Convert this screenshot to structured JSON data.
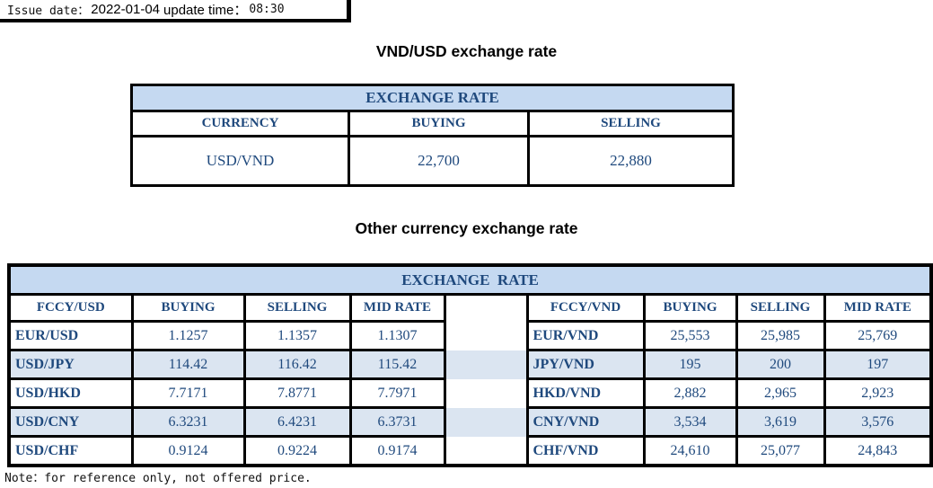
{
  "meta": {
    "issue_date_label": "Issue date：",
    "issue_date": "2022-01-04",
    "update_time_label": "update time：",
    "update_time": "08:30"
  },
  "section1": {
    "title": "VND/USD exchange rate",
    "table": {
      "header": "EXCHANGE RATE",
      "columns": [
        "CURRENCY",
        "BUYING",
        "SELLING"
      ],
      "rows": [
        [
          "USD/VND",
          "22,700",
          "22,880"
        ]
      ]
    }
  },
  "section2": {
    "title": "Other currency exchange rate",
    "table": {
      "header": "EXCHANGE  RATE",
      "left_columns": [
        "FCCY/USD",
        "BUYING",
        "SELLING",
        "MID RATE"
      ],
      "right_columns": [
        "FCCY/VND",
        "BUYING",
        "SELLING",
        "MID RATE"
      ],
      "rows": [
        {
          "left": [
            "EUR/USD",
            "1.1257",
            "1.1357",
            "1.1307"
          ],
          "right": [
            "EUR/VND",
            "25,553",
            "25,985",
            "25,769"
          ]
        },
        {
          "left": [
            "USD/JPY",
            "114.42",
            "116.42",
            "115.42"
          ],
          "right": [
            "JPY/VND",
            "195",
            "200",
            "197"
          ]
        },
        {
          "left": [
            "USD/HKD",
            "7.7171",
            "7.8771",
            "7.7971"
          ],
          "right": [
            "HKD/VND",
            "2,882",
            "2,965",
            "2,923"
          ]
        },
        {
          "left": [
            "USD/CNY",
            "6.3231",
            "6.4231",
            "6.3731"
          ],
          "right": [
            "CNY/VND",
            "3,534",
            "3,619",
            "3,576"
          ]
        },
        {
          "left": [
            "USD/CHF",
            "0.9124",
            "0.9224",
            "0.9174"
          ],
          "right": [
            "CHF/VND",
            "24,610",
            "25,077",
            "24,843"
          ]
        }
      ]
    }
  },
  "note": "Note：for reference only, not offered price.",
  "colors": {
    "header_bg": "#c5d9f1",
    "stripe_bg": "#dbe5f1",
    "text_blue": "#1f497d",
    "border": "#000000"
  }
}
